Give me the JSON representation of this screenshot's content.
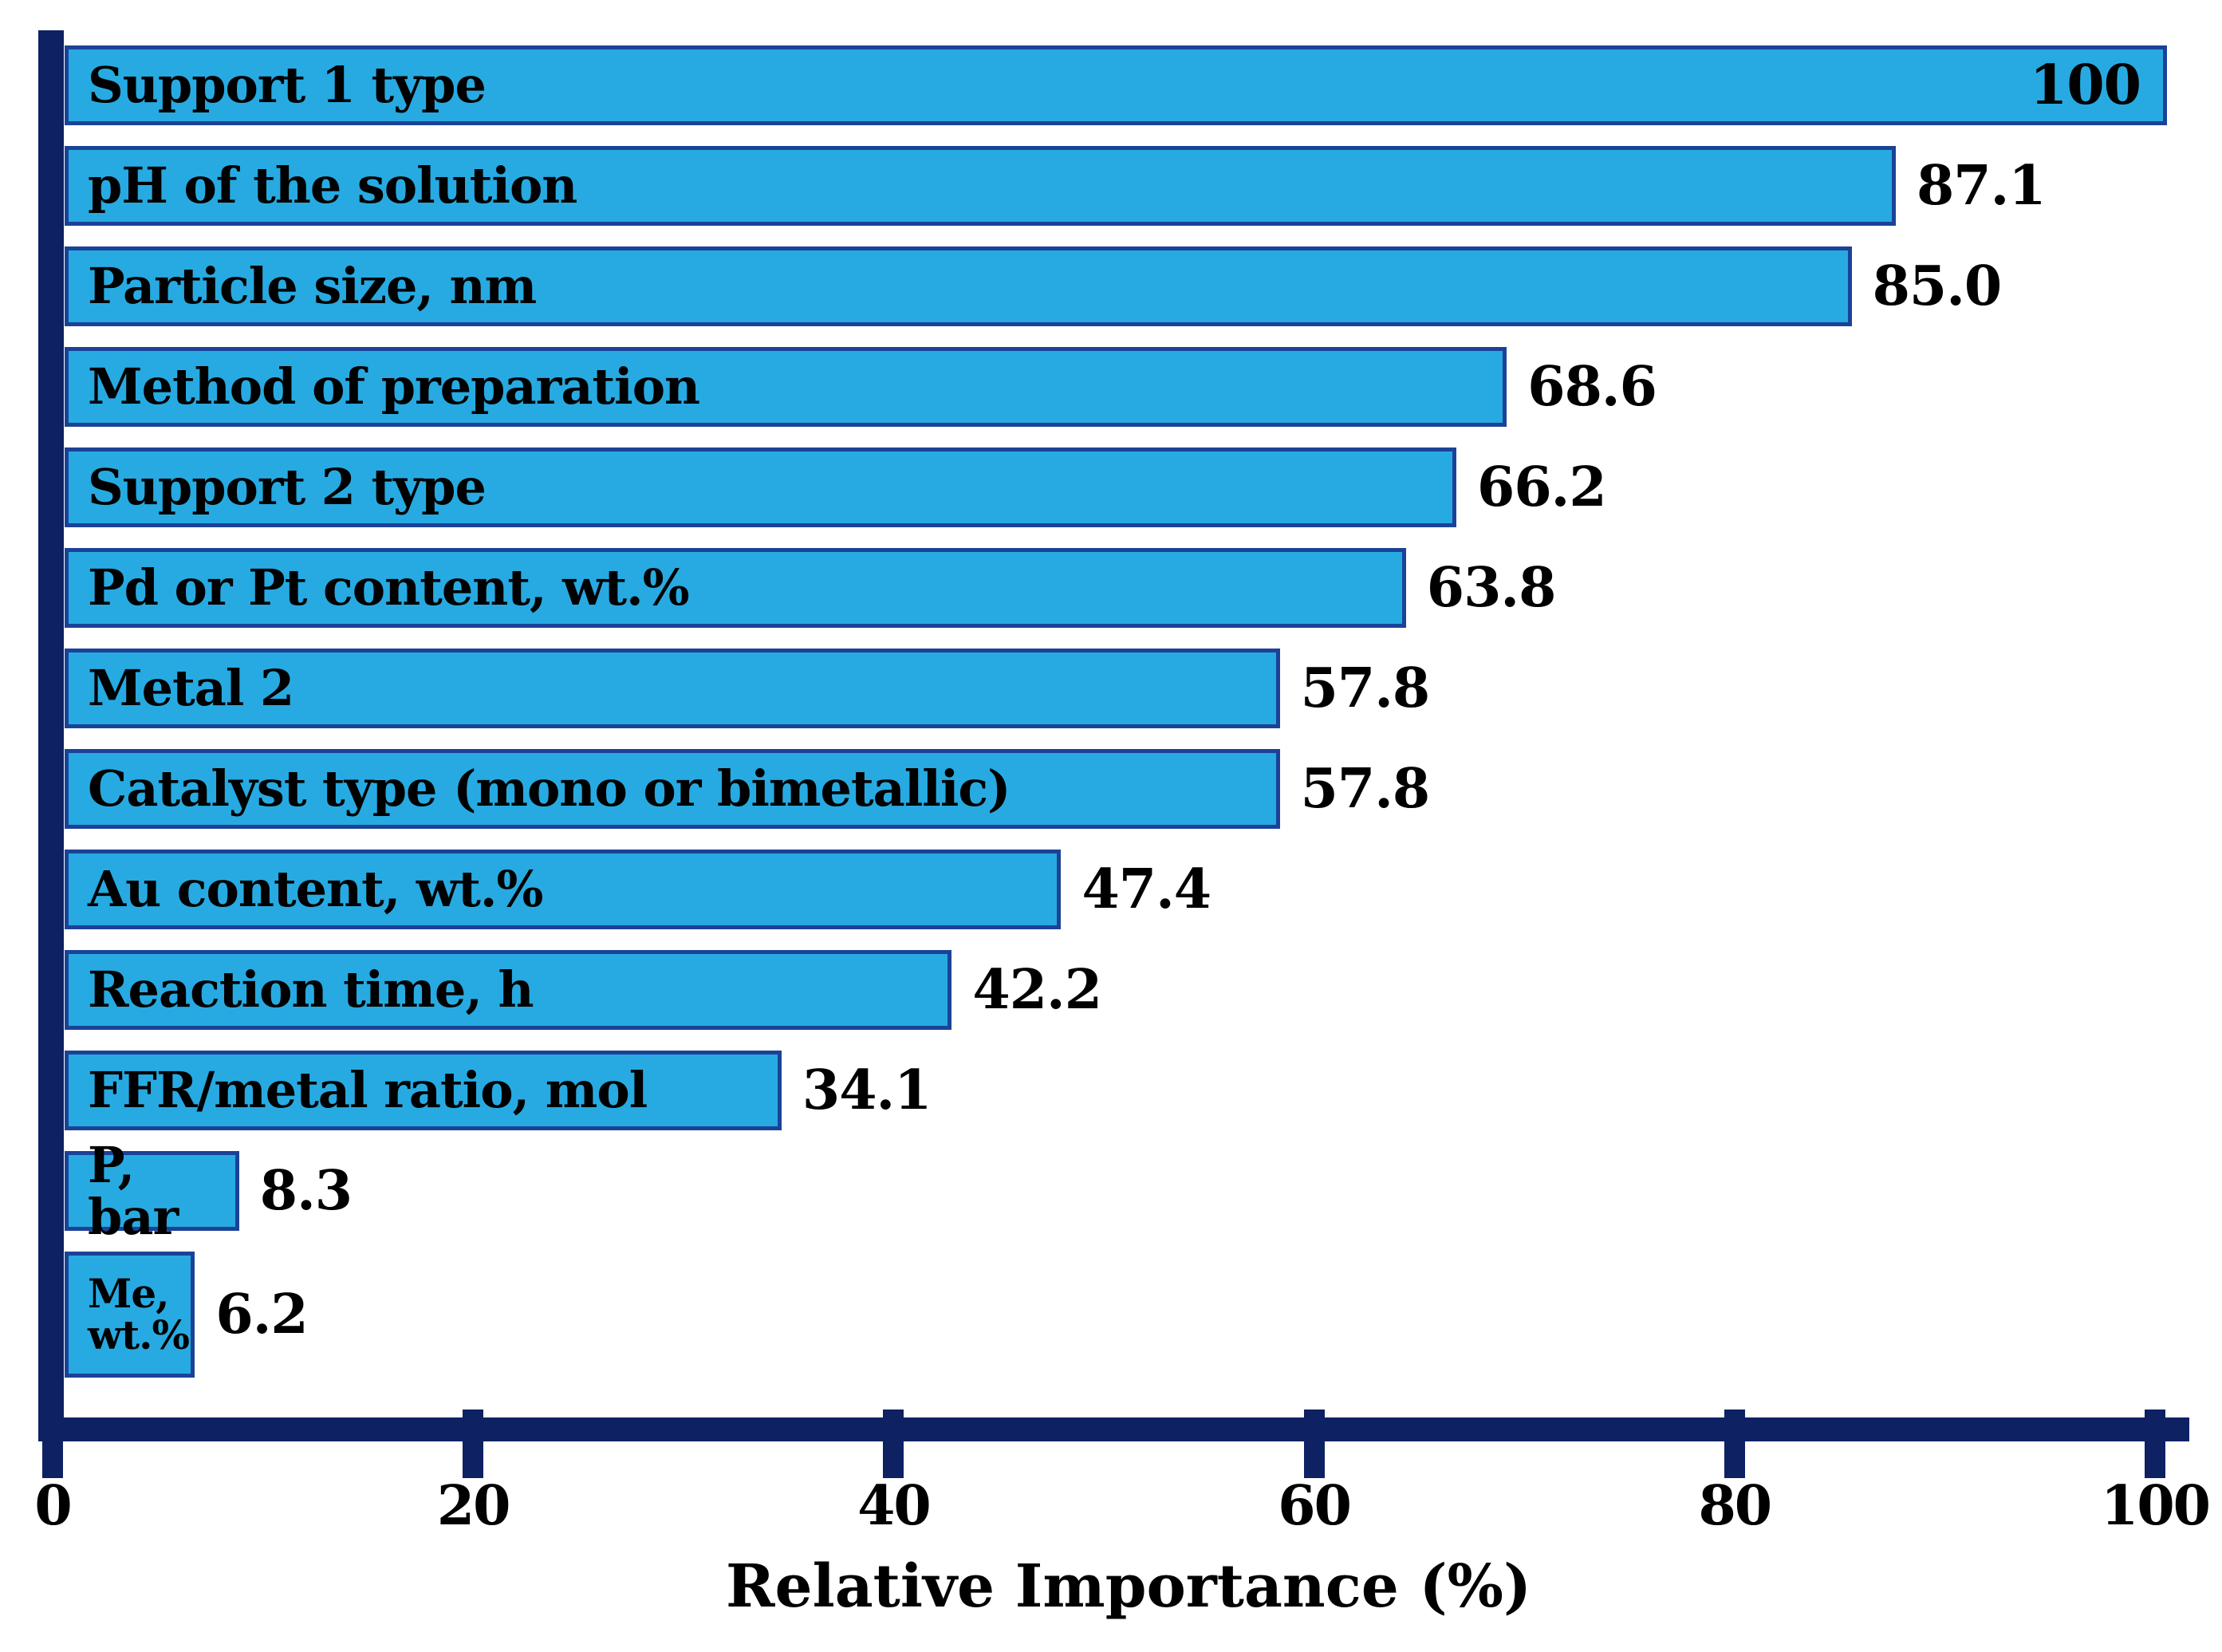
{
  "chart_data": {
    "type": "bar",
    "orientation": "horizontal",
    "title": "",
    "xlabel": "Relative Importance (%)",
    "ylabel": "",
    "categories": [
      "Support 1 type",
      "pH of the solution",
      "Particle size, nm",
      "Method of preparation",
      "Support 2 type",
      "Pd or Pt content, wt.%",
      "Metal 2",
      "Catalyst type (mono or bimetallic)",
      "Au content, wt.%",
      "Reaction time, h",
      "FFR/metal ratio, mol",
      "P, bar",
      "Me,\nwt.%"
    ],
    "values": [
      100,
      87.1,
      85.0,
      68.6,
      66.2,
      63.8,
      57.8,
      57.8,
      47.4,
      42.2,
      34.1,
      8.3,
      6.2
    ],
    "value_labels": [
      "100",
      "87.1",
      "85.0",
      "68.6",
      "66.2",
      "63.8",
      "57.8",
      "57.8",
      "47.4",
      "42.2",
      "34.1",
      "8.3",
      "6.2"
    ],
    "inside_value_label_indices": [
      0
    ],
    "x_ticks": [
      "0",
      "20",
      "40",
      "60",
      "80",
      "100"
    ],
    "xlim": [
      0,
      100
    ],
    "grid": false,
    "legend": false,
    "bar_labels_inside": true,
    "colors": {
      "bar_fill": "#27AAE1",
      "bar_border": "#1B4297",
      "axis": "#0E2163",
      "text": "#000000",
      "background": "#FFFFFF"
    }
  }
}
